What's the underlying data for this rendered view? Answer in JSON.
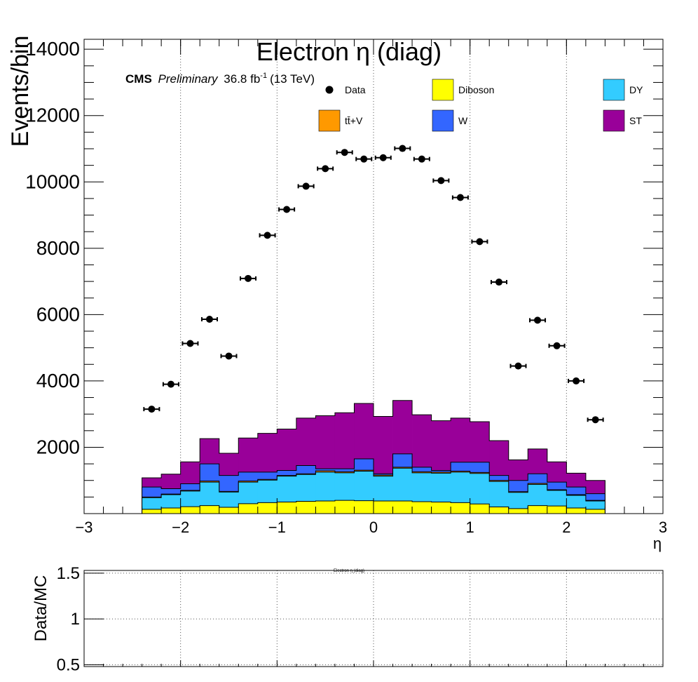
{
  "chart_data": [
    {
      "type": "bar",
      "subtype": "stacked-histogram-with-data-points",
      "title": "Electron η (diag)",
      "xlabel": "η",
      "ylabel": "Events/bin",
      "xlim": [
        -3,
        3
      ],
      "ylim": [
        0,
        14300
      ],
      "x_ticks": [
        "−3",
        "−2",
        "−1",
        "0",
        "1",
        "2",
        "3"
      ],
      "y_ticks": [
        "2000",
        "4000",
        "6000",
        "8000",
        "10000",
        "12000",
        "14000"
      ],
      "grid": "vertical dotted",
      "label": {
        "experiment": "CMS",
        "status": "Preliminary",
        "lumi": "36.8 fb",
        "lumi_sup": "-1",
        "energy": "(13 TeV)"
      },
      "legend": [
        {
          "name": "Data",
          "color": "#000000",
          "style": "marker"
        },
        {
          "name": "Diboson",
          "color": "#ffff00",
          "style": "box"
        },
        {
          "name": "DY",
          "color": "#33ccff",
          "style": "box"
        },
        {
          "name": "tt̄+V",
          "color": "#ff9900",
          "style": "box"
        },
        {
          "name": "W",
          "color": "#3366ff",
          "style": "box"
        },
        {
          "name": "ST",
          "color": "#990099",
          "style": "box"
        }
      ],
      "bin_edges": [
        -2.4,
        -2.2,
        -2.0,
        -1.8,
        -1.6,
        -1.4,
        -1.2,
        -1.0,
        -0.8,
        -0.6,
        -0.4,
        -0.2,
        0.0,
        0.2,
        0.4,
        0.6,
        0.8,
        1.0,
        1.2,
        1.4,
        1.6,
        1.8,
        2.0,
        2.2,
        2.4
      ],
      "stack_tops": {
        "Diboson": [
          130,
          170,
          210,
          240,
          190,
          300,
          330,
          350,
          370,
          380,
          400,
          390,
          380,
          380,
          360,
          350,
          330,
          290,
          200,
          150,
          240,
          230,
          170,
          130
        ],
        "DY": [
          480,
          570,
          680,
          950,
          650,
          950,
          1010,
          1130,
          1180,
          1250,
          1230,
          1280,
          1130,
          1370,
          1230,
          1220,
          1250,
          1210,
          970,
          640,
          880,
          700,
          550,
          380
        ],
        "tt̄+V": [
          500,
          590,
          700,
          980,
          670,
          980,
          1030,
          1150,
          1200,
          1290,
          1260,
          1310,
          1160,
          1400,
          1260,
          1250,
          1280,
          1240,
          1000,
          660,
          910,
          720,
          570,
          400
        ],
        "W": [
          800,
          750,
          900,
          1500,
          1150,
          1250,
          1250,
          1300,
          1450,
          1350,
          1350,
          1650,
          1200,
          1800,
          1400,
          1300,
          1550,
          1550,
          1150,
          1000,
          1200,
          950,
          800,
          600
        ],
        "ST": [
          1080,
          1190,
          1560,
          2260,
          1820,
          2280,
          2420,
          2550,
          2880,
          2950,
          3040,
          3320,
          2930,
          3410,
          2980,
          2800,
          2880,
          2770,
          2200,
          1620,
          1950,
          1560,
          1220,
          1000
        ]
      },
      "data": {
        "x": [
          -2.3,
          -2.1,
          -1.9,
          -1.7,
          -1.5,
          -1.3,
          -1.1,
          -0.9,
          -0.7,
          -0.5,
          -0.3,
          -0.1,
          0.1,
          0.3,
          0.5,
          0.7,
          0.9,
          1.1,
          1.3,
          1.5,
          1.7,
          1.9,
          2.1,
          2.3
        ],
        "y": [
          3150,
          3900,
          5130,
          5860,
          4750,
          7090,
          8390,
          9170,
          9870,
          10400,
          10890,
          10690,
          10730,
          11010,
          10690,
          10040,
          9530,
          8200,
          6980,
          4450,
          5830,
          5060,
          4000,
          2830
        ]
      }
    },
    {
      "type": "line",
      "title": "Electron η (diag)",
      "xlabel": "",
      "ylabel": "Data/MC",
      "xlim": [
        -3,
        3
      ],
      "ylim": [
        0.48,
        1.53
      ],
      "y_ticks": [
        "0.5",
        "1",
        "1.5"
      ],
      "grid": "dotted both",
      "series": []
    }
  ]
}
